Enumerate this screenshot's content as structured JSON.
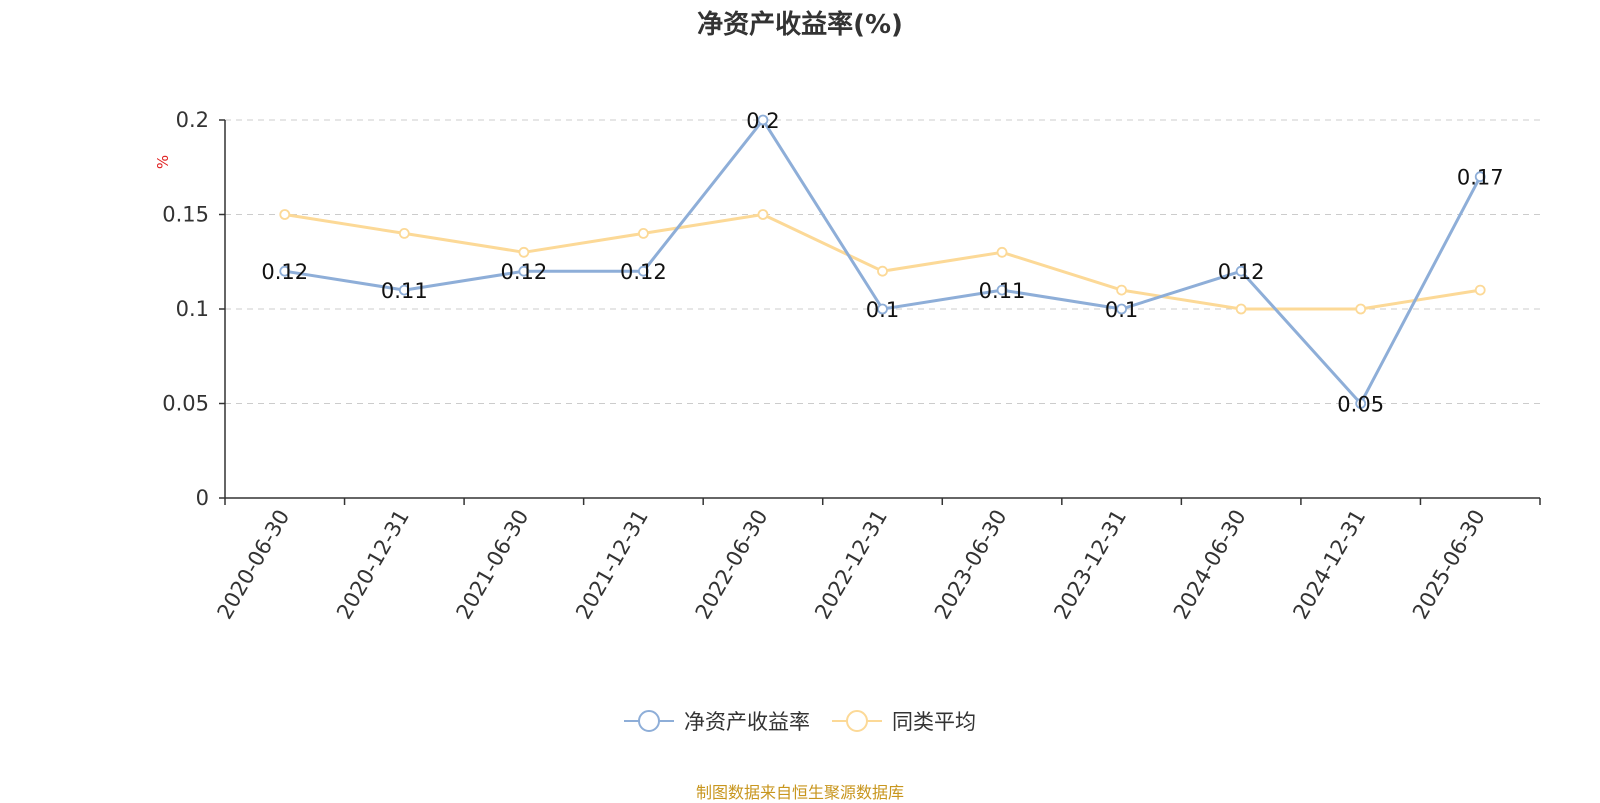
{
  "chart_data": {
    "type": "line",
    "title": "净资产收益率(%)",
    "ylabel": "%",
    "xlabel": "",
    "categories": [
      "2020-06-30",
      "2020-12-31",
      "2021-06-30",
      "2021-12-31",
      "2022-06-30",
      "2022-12-31",
      "2023-06-30",
      "2023-12-31",
      "2024-06-30",
      "2024-12-31",
      "2025-06-30"
    ],
    "ylim": [
      0,
      0.2
    ],
    "yticks": [
      0,
      0.05,
      0.1,
      0.15,
      0.2
    ],
    "ytick_labels": [
      "0",
      "0.05",
      "0.1",
      "0.15",
      "0.2"
    ],
    "grid": true,
    "legend_position": "bottom-center",
    "series": [
      {
        "name": "净资产收益率",
        "color": "#8eaed8",
        "values": [
          0.12,
          0.11,
          0.12,
          0.12,
          0.2,
          0.1,
          0.11,
          0.1,
          0.12,
          0.05,
          0.17
        ],
        "labels": [
          "0.12",
          "0.11",
          "0.12",
          "0.12",
          "0.2",
          "0.1",
          "0.11",
          "0.1",
          "0.12",
          "0.05",
          "0.17"
        ]
      },
      {
        "name": "同类平均",
        "color": "#fcd997",
        "values": [
          0.15,
          0.14,
          0.13,
          0.14,
          0.15,
          0.12,
          0.13,
          0.11,
          0.1,
          0.1,
          0.11
        ]
      }
    ]
  },
  "source_note": "制图数据来自恒生聚源数据库",
  "colors": {
    "axis": "#333333",
    "grid": "#cccccc",
    "ylabel": "#e02020",
    "source": "#c8961e"
  }
}
